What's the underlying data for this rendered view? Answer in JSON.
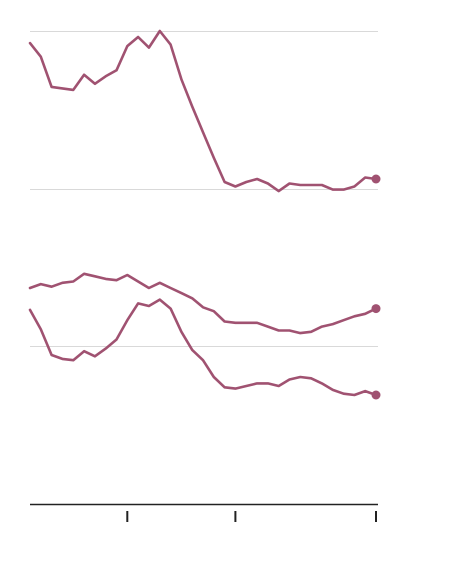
{
  "chart_data": {
    "type": "line",
    "title": "",
    "xlabel": "",
    "ylabel": "",
    "grid": true,
    "legend": "none",
    "x": [
      0,
      1,
      2,
      3,
      4,
      5,
      6,
      7,
      8,
      9,
      10,
      11,
      12,
      13,
      14,
      15,
      16,
      17,
      18,
      19,
      20,
      21,
      22,
      23,
      24,
      25,
      26,
      27,
      28,
      29,
      30,
      31,
      32
    ],
    "x_ticks": [
      9,
      19,
      32
    ],
    "series": [
      {
        "color": "#a05271",
        "panel": "top",
        "values": [
          92,
          83,
          63,
          62,
          61,
          71,
          65,
          70,
          74,
          90,
          96,
          89,
          100,
          91,
          68,
          50,
          33,
          16,
          0,
          -3,
          0,
          2,
          -1,
          -6,
          -1,
          -2,
          -2,
          -2,
          -5,
          -5,
          -3,
          3,
          2
        ]
      },
      {
        "color": "#a05271",
        "panel": "bottom",
        "values": [
          145,
          148,
          146,
          149,
          150,
          156,
          154,
          152,
          151,
          155,
          150,
          145,
          149,
          145,
          141,
          137,
          130,
          127,
          119,
          118,
          118,
          118,
          115,
          112,
          112,
          110,
          111,
          115,
          117,
          120,
          123,
          125,
          129
        ]
      },
      {
        "color": "#a05271",
        "panel": "bottom",
        "values": [
          128,
          113,
          93,
          90,
          89,
          96,
          92,
          98,
          105,
          120,
          133,
          131,
          136,
          129,
          111,
          97,
          89,
          76,
          68,
          67,
          69,
          71,
          71,
          69,
          74,
          76,
          75,
          71,
          66,
          63,
          62,
          65,
          62
        ]
      }
    ]
  }
}
